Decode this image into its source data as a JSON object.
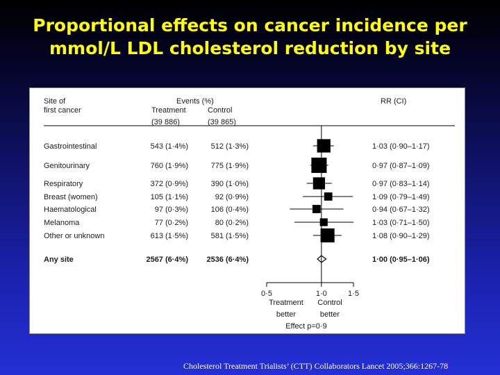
{
  "title": {
    "line1": "Proportional effects on cancer incidence per",
    "line2": "mmol/L LDL cholesterol reduction by site"
  },
  "footer": "Cholesterol Treatment Trialists’ (CTT) Collaborators  Lancet 2005;366:1267-78",
  "table": {
    "site_header_1": "Site of",
    "site_header_2": "first cancer",
    "events_header": "Events (%)",
    "treatment_header": "Treatment",
    "control_header": "Control",
    "treatment_n": "(39 886)",
    "control_n": "(39 865)",
    "rr_header": "RR (CI)"
  },
  "chart_data": {
    "type": "forest",
    "scale": "log",
    "xlim": [
      0.5,
      1.5
    ],
    "x_ticks": [
      0.5,
      1.0,
      1.5
    ],
    "x_tick_labels": [
      "0·5",
      "1·0",
      "1·5"
    ],
    "reference_line": 1.0,
    "left_axis_label": [
      "Treatment",
      "better"
    ],
    "right_axis_label": [
      "Control",
      "better"
    ],
    "effect_label": "Effect p=0·9",
    "rows": [
      {
        "site": "Gastrointestinal",
        "treatment": "543 (1·4%)",
        "control": "512 (1·3%)",
        "rr": 1.03,
        "lo": 0.9,
        "hi": 1.17,
        "rr_text": "1·03 (0·90–1·17)",
        "marker": "square",
        "weight": 1055
      },
      {
        "site": "Genitourinary",
        "treatment": "760 (1·9%)",
        "control": "775 (1·9%)",
        "rr": 0.97,
        "lo": 0.87,
        "hi": 1.09,
        "rr_text": "0·97 (0·87–1·09)",
        "marker": "square",
        "weight": 1535
      },
      {
        "site": "Respiratory",
        "treatment": "372 (0·9%)",
        "control": "390 (1·0%)",
        "rr": 0.97,
        "lo": 0.83,
        "hi": 1.14,
        "rr_text": "0·97 (0·83–1·14)",
        "marker": "square",
        "weight": 762
      },
      {
        "site": "Breast (women)",
        "treatment": "105 (1·1%)",
        "control": "92 (0·9%)",
        "rr": 1.09,
        "lo": 0.79,
        "hi": 1.49,
        "rr_text": "1·09 (0·79–1·49)",
        "marker": "square",
        "weight": 197
      },
      {
        "site": "Haematological",
        "treatment": "97 (0·3%)",
        "control": "106 (0·4%)",
        "rr": 0.94,
        "lo": 0.67,
        "hi": 1.32,
        "rr_text": "0·94 (0·67–1·32)",
        "marker": "square",
        "weight": 203
      },
      {
        "site": "Melanoma",
        "treatment": "77 (0·2%)",
        "control": "80 (0·2%)",
        "rr": 1.03,
        "lo": 0.71,
        "hi": 1.5,
        "rr_text": "1·03 (0·71–1·50)",
        "marker": "square",
        "weight": 157
      },
      {
        "site": "Other or unknown",
        "treatment": "613 (1·5%)",
        "control": "581 (1·5%)",
        "rr": 1.08,
        "lo": 0.9,
        "hi": 1.29,
        "rr_text": "1·08 (0·90–1·29)",
        "marker": "square",
        "weight": 1194
      },
      {
        "site": "Any site",
        "treatment": "2567 (6·4%)",
        "control": "2536 (6·4%)",
        "rr": 1.0,
        "lo": 0.95,
        "hi": 1.06,
        "rr_text": "1·00 (0·95–1·06)",
        "marker": "diamond",
        "bold": true
      }
    ]
  }
}
